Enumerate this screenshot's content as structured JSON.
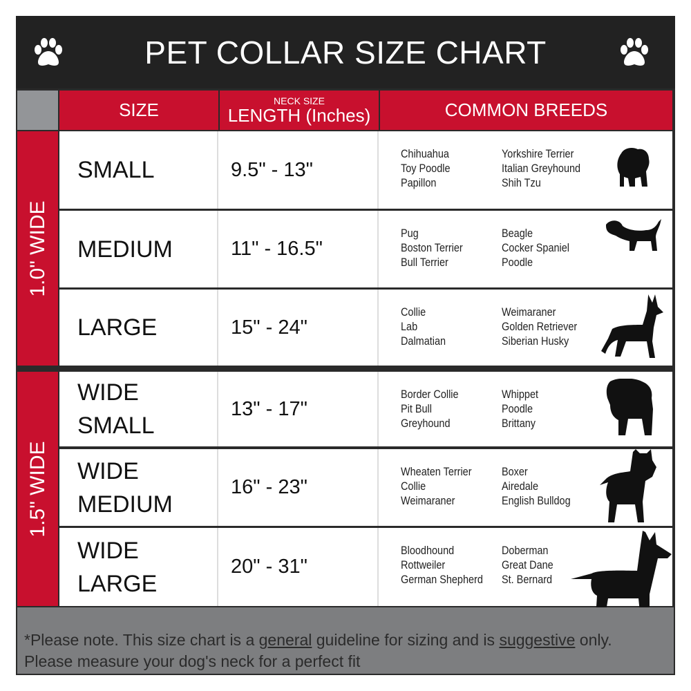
{
  "title": "PET COLLAR SIZE CHART",
  "headers": {
    "size": "SIZE",
    "neck_size": "NECK SIZE",
    "length": "LENGTH (Inches)",
    "breeds": "COMMON BREEDS"
  },
  "groups": [
    {
      "label": "1.0\" WIDE"
    },
    {
      "label": "1.5\" WIDE"
    }
  ],
  "rows": [
    {
      "size": [
        "SMALL"
      ],
      "length": "9.5\" - 13\"",
      "breeds_a": [
        "Chihuahua",
        "Toy Poodle",
        "Papillon"
      ],
      "breeds_b": [
        "Yorkshire Terrier",
        "Italian Greyhound",
        "Shih Tzu"
      ],
      "icon": "small-dog-silhouette-icon"
    },
    {
      "size": [
        "MEDIUM"
      ],
      "length": "11\" - 16.5\"",
      "breeds_a": [
        "Pug",
        "Boston Terrier",
        "Bull Terrier"
      ],
      "breeds_b": [
        "Beagle",
        "Cocker Spaniel",
        "Poodle"
      ],
      "icon": "dachshund-silhouette-icon"
    },
    {
      "size": [
        "LARGE"
      ],
      "length": "15\" - 24\"",
      "breeds_a": [
        "Collie",
        "Lab",
        "Dalmatian"
      ],
      "breeds_b": [
        "Weimaraner",
        "Golden Retriever",
        "Siberian Husky"
      ],
      "icon": "shepherd-silhouette-icon"
    },
    {
      "size": [
        "WIDE",
        "SMALL"
      ],
      "length": "13\" - 17\"",
      "breeds_a": [
        "Border Collie",
        "Pit Bull",
        "Greyhound"
      ],
      "breeds_b": [
        "Whippet",
        "Poodle",
        "Brittany"
      ],
      "icon": "bulldog-silhouette-icon"
    },
    {
      "size": [
        "WIDE",
        "MEDIUM"
      ],
      "length": "16\" - 23\"",
      "breeds_a": [
        "Wheaten Terrier",
        "Collie",
        "Weimaraner"
      ],
      "breeds_b": [
        "Boxer",
        "Airedale",
        "English Bulldog"
      ],
      "icon": "pitbull-silhouette-icon"
    },
    {
      "size": [
        "WIDE",
        "LARGE"
      ],
      "length": "20\" - 31\"",
      "breeds_a": [
        "Bloodhound",
        "Rottweiler",
        "German Shepherd"
      ],
      "breeds_b": [
        "Doberman",
        "Great Dane",
        "St. Bernard"
      ],
      "icon": "doberman-silhouette-icon"
    }
  ],
  "footer": {
    "p1": "*Please note. This size chart is a",
    "u1": "general",
    "p2": "guideline for sizing and is",
    "u2": "suggestive",
    "p3": "only.",
    "line2": "Please measure your dog's neck for a perfect fit"
  },
  "colors": {
    "red": "#c8102e",
    "dark": "#222222",
    "gray": "#7d7e80"
  }
}
